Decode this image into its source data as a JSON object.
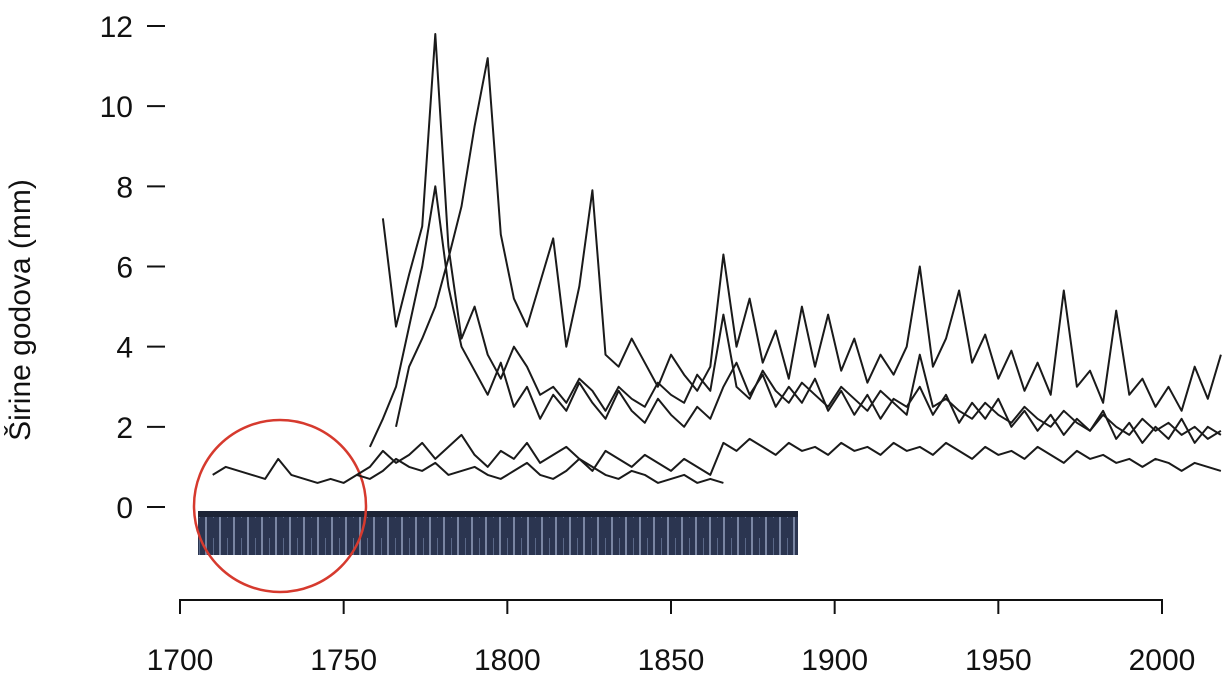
{
  "chart_data": {
    "type": "line",
    "y_label": "Širine godova (mm)",
    "x": [
      1710,
      1714,
      1718,
      1722,
      1726,
      1730,
      1734,
      1738,
      1742,
      1746,
      1750,
      1754,
      1758,
      1762,
      1766,
      1770,
      1774,
      1778,
      1782,
      1786,
      1790,
      1794,
      1798,
      1802,
      1806,
      1810,
      1814,
      1818,
      1822,
      1826,
      1830,
      1834,
      1838,
      1842,
      1846,
      1850,
      1854,
      1858,
      1862,
      1866,
      1870,
      1874,
      1878,
      1882,
      1886,
      1890,
      1894,
      1898,
      1902,
      1906,
      1910,
      1914,
      1918,
      1922,
      1926,
      1930,
      1934,
      1938,
      1942,
      1946,
      1950,
      1954,
      1958,
      1962,
      1966,
      1970,
      1974,
      1978,
      1982,
      1986,
      1990,
      1994,
      1998,
      2002,
      2006,
      2010,
      2014,
      2018
    ],
    "series": [
      {
        "color": "#1a1a1a",
        "values": [
          0.8,
          1.0,
          0.9,
          0.8,
          0.7,
          1.2,
          0.8,
          0.7,
          0.6,
          0.7,
          0.6,
          0.8,
          0.7,
          0.9,
          1.2,
          1.0,
          0.9,
          1.1,
          0.8,
          0.9,
          1.0,
          0.8,
          0.7,
          0.9,
          1.1,
          0.8,
          0.7,
          0.9,
          1.2,
          1.0,
          0.8,
          0.7,
          0.9,
          0.8,
          0.6,
          0.7,
          0.8,
          0.6,
          0.7,
          0.6,
          null,
          null,
          null,
          null,
          null,
          null,
          null,
          null,
          null,
          null,
          null,
          null,
          null,
          null,
          null,
          null,
          null,
          null,
          null,
          null,
          null,
          null,
          null,
          null,
          null,
          null,
          null,
          null,
          null,
          null,
          null,
          null,
          null,
          null,
          null,
          null,
          null,
          null
        ]
      },
      {
        "color": "#1a1a1a",
        "values": [
          null,
          null,
          null,
          null,
          null,
          null,
          null,
          null,
          null,
          null,
          null,
          null,
          null,
          7.2,
          4.5,
          5.8,
          7.0,
          11.8,
          6.5,
          4.2,
          5.0,
          3.8,
          3.2,
          4.0,
          3.5,
          2.8,
          3.0,
          2.6,
          3.2,
          2.9,
          2.4,
          3.0,
          2.7,
          2.5,
          3.1,
          2.8,
          2.6,
          3.3,
          2.9,
          4.8,
          3.0,
          2.7,
          3.4,
          2.9,
          2.6,
          3.1,
          2.8,
          2.5,
          3.0,
          2.7,
          2.4,
          2.9,
          2.6,
          2.3,
          3.8,
          2.5,
          2.7,
          2.4,
          2.2,
          2.6,
          2.3,
          2.1,
          2.5,
          2.2,
          2.0,
          2.4,
          2.1,
          1.9,
          2.3,
          2.0,
          1.8,
          2.2,
          1.9,
          2.1,
          1.8,
          2.0,
          1.7,
          1.9
        ]
      },
      {
        "color": "#1a1a1a",
        "values": [
          null,
          null,
          null,
          null,
          null,
          null,
          null,
          null,
          null,
          null,
          null,
          null,
          null,
          null,
          2.0,
          3.5,
          4.2,
          5.0,
          6.2,
          7.5,
          9.5,
          11.2,
          6.8,
          5.2,
          4.5,
          5.6,
          6.7,
          4.0,
          5.5,
          7.9,
          3.8,
          3.5,
          4.2,
          3.6,
          3.0,
          3.8,
          3.3,
          2.9,
          3.5,
          6.3,
          4.0,
          5.2,
          3.6,
          4.4,
          3.2,
          5.0,
          3.5,
          4.8,
          3.4,
          4.2,
          3.1,
          3.8,
          3.3,
          4.0,
          6.0,
          3.5,
          4.2,
          5.4,
          3.6,
          4.3,
          3.2,
          3.9,
          2.9,
          3.6,
          2.8,
          5.4,
          3.0,
          3.4,
          2.6,
          4.9,
          2.8,
          3.2,
          2.5,
          3.0,
          2.4,
          3.5,
          2.7,
          3.8
        ]
      },
      {
        "color": "#1a1a1a",
        "values": [
          null,
          null,
          null,
          null,
          null,
          null,
          null,
          null,
          null,
          null,
          null,
          0.8,
          1.0,
          1.4,
          1.1,
          1.3,
          1.6,
          1.2,
          1.5,
          1.8,
          1.3,
          1.0,
          1.4,
          1.2,
          1.6,
          1.1,
          1.3,
          1.5,
          1.2,
          0.9,
          1.4,
          1.2,
          1.0,
          1.3,
          1.1,
          0.9,
          1.2,
          1.0,
          0.8,
          1.6,
          1.4,
          1.7,
          1.5,
          1.3,
          1.6,
          1.4,
          1.5,
          1.3,
          1.6,
          1.4,
          1.5,
          1.3,
          1.6,
          1.4,
          1.5,
          1.3,
          1.6,
          1.4,
          1.2,
          1.5,
          1.3,
          1.4,
          1.2,
          1.5,
          1.3,
          1.1,
          1.4,
          1.2,
          1.3,
          1.1,
          1.2,
          1.0,
          1.2,
          1.1,
          0.9,
          1.1,
          1.0,
          0.9
        ]
      },
      {
        "color": "#1a1a1a",
        "values": [
          null,
          null,
          null,
          null,
          null,
          null,
          null,
          null,
          null,
          null,
          null,
          null,
          1.5,
          2.2,
          3.0,
          4.5,
          6.0,
          8.0,
          5.5,
          4.0,
          3.4,
          2.8,
          3.6,
          2.5,
          3.0,
          2.2,
          2.8,
          2.4,
          3.1,
          2.6,
          2.2,
          2.9,
          2.4,
          2.1,
          2.7,
          2.3,
          2.0,
          2.5,
          2.2,
          3.0,
          3.6,
          2.8,
          3.3,
          2.5,
          3.0,
          2.6,
          3.2,
          2.4,
          2.9,
          2.3,
          2.8,
          2.2,
          2.7,
          2.5,
          3.0,
          2.3,
          2.8,
          2.1,
          2.6,
          2.2,
          2.7,
          2.0,
          2.4,
          1.9,
          2.3,
          1.8,
          2.2,
          1.9,
          2.4,
          1.7,
          2.1,
          1.6,
          2.0,
          1.7,
          2.2,
          1.6,
          2.0,
          1.8
        ]
      }
    ],
    "xlim": [
      1700,
      2000
    ],
    "ylim": [
      0,
      12
    ],
    "xticks": [
      1700,
      1750,
      1800,
      1850,
      1900,
      1950,
      2000
    ],
    "yticks": [
      0,
      2,
      4,
      6,
      8,
      10,
      12
    ]
  }
}
